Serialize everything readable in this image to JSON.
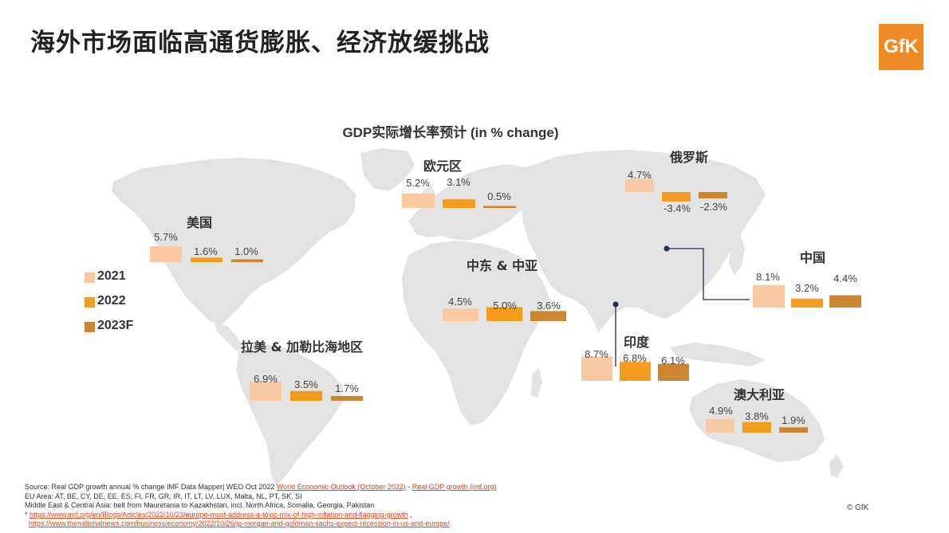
{
  "title": "海外市场面临高通货膨胀、经济放缓挑战",
  "logo_text": "GfK",
  "colors": {
    "y2021": "#f8c9a3",
    "y2022": "#f59b1f",
    "y2023": "#cc8530",
    "map": "#e3e3e3",
    "accent": "#f08a24",
    "line": "#1f2f4f"
  },
  "chart_data": {
    "type": "bar",
    "title": "GDP实际增长率预计 (in % change)",
    "series_names": [
      "2021",
      "2022",
      "2023F"
    ],
    "regions": [
      {
        "name": "美国",
        "values": [
          5.7,
          1.6,
          1.0
        ],
        "labels": [
          "5.7%",
          "1.6%",
          "1.0%"
        ]
      },
      {
        "name": "欧元区",
        "values": [
          5.2,
          3.1,
          0.5
        ],
        "labels": [
          "5.2%",
          "3.1%",
          "0.5%"
        ]
      },
      {
        "name": "俄罗斯",
        "values": [
          4.7,
          -3.4,
          -2.3
        ],
        "labels": [
          "4.7%",
          "-3.4%",
          "-2.3%"
        ]
      },
      {
        "name": "中国",
        "values": [
          8.1,
          3.2,
          4.4
        ],
        "labels": [
          "8.1%",
          "3.2%",
          "4.4%"
        ]
      },
      {
        "name": "中东 & 中亚",
        "values": [
          4.5,
          5.0,
          3.6
        ],
        "labels": [
          "4.5%",
          "5.0%",
          "3.6%"
        ]
      },
      {
        "name": "印度",
        "values": [
          8.7,
          6.8,
          6.1
        ],
        "labels": [
          "8.7%",
          "6.8%",
          "6.1%"
        ]
      },
      {
        "name": "拉美 & 加勒比海地区",
        "values": [
          6.9,
          3.5,
          1.7
        ],
        "labels": [
          "6.9%",
          "3.5%",
          "1.7%"
        ]
      },
      {
        "name": "澳大利亚",
        "values": [
          4.9,
          3.8,
          1.9
        ],
        "labels": [
          "4.9%",
          "3.8%",
          "1.9%"
        ]
      }
    ]
  },
  "legend": [
    "2021",
    "2022",
    "2023F"
  ],
  "source": {
    "line1_text": "Source: Real GDP growth annual % change IMF Data Mapper| WEO Oct 2022 ",
    "line1_link1": "World Economic Outlook (October 2022)",
    "line1_sep": " - ",
    "line1_link2": "Real GDP growth (imf.org)",
    "line2": "EU Area: AT, BE, CY, DE, EE, ES, FI, FR, GR, IR, IT, LT, LV, LUX, Malta, NL, PT, SK, SI",
    "line3": "Middle East & Central Asia: belt from Mauretania to Kazakhstan, incl. North Africa, Somalia, Georgia, Pakistan",
    "line4_prefix": "* ",
    "line4_link": "https://www.imf.org/en/Blogs/Articles/2022/10/23/europe-must-address-a-toxic-mix-of-high-inflation-and-flagging-growth",
    "line4_suffix": " ,",
    "line5_link": "https://www.thenationalnews.com/business/economy/2022/10/26/jp-morgan-and-goldman-sachs-expect-recession-in-us-and-europe/"
  },
  "copyright": "© GfK"
}
